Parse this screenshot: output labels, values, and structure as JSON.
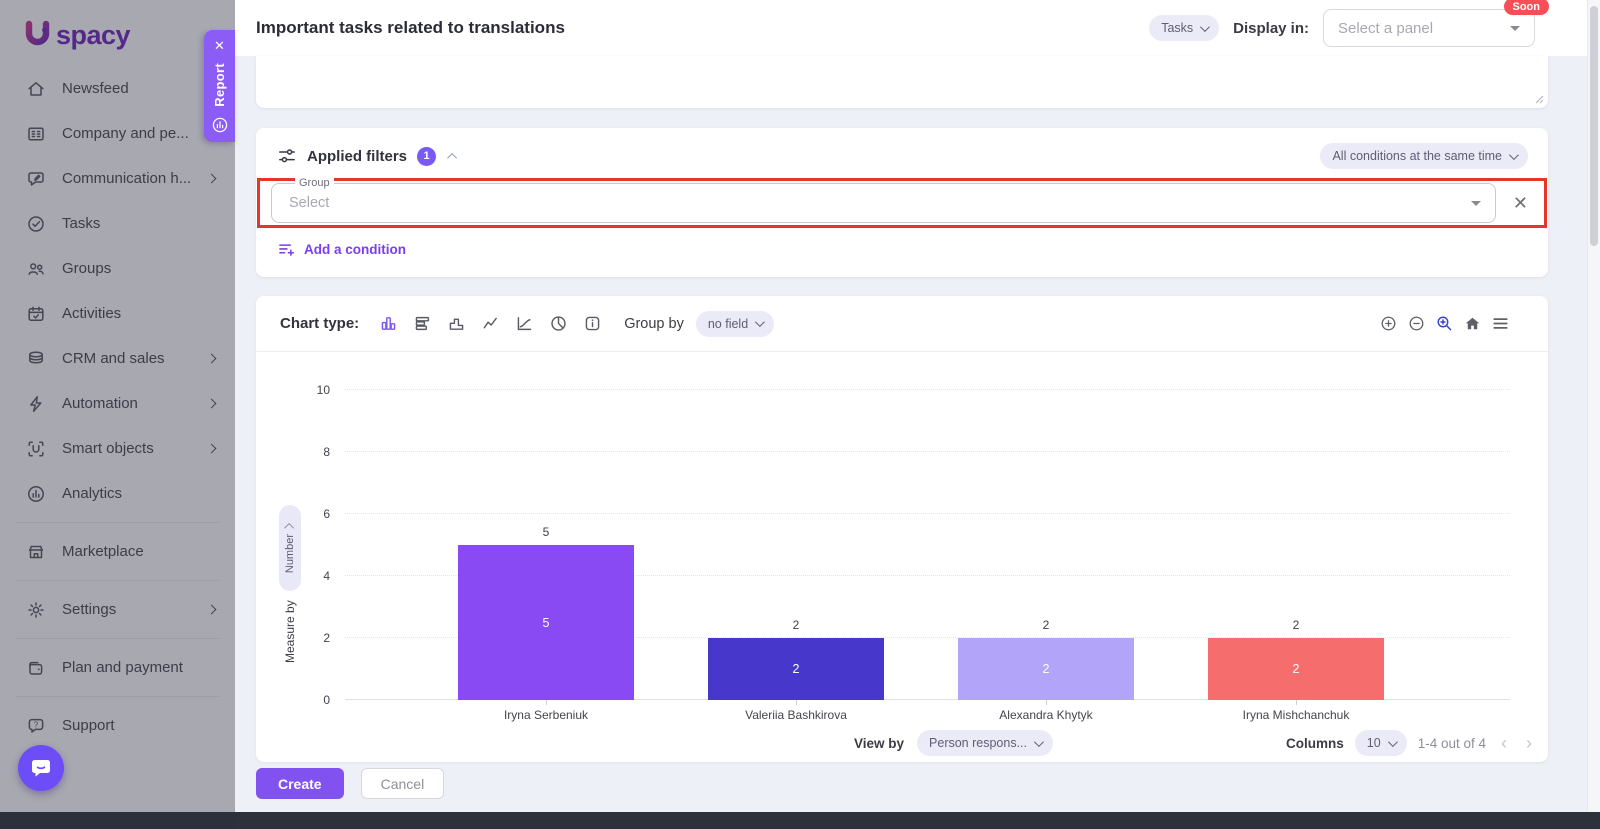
{
  "colors": {
    "accent": "#7c54f3",
    "highlight_border": "#e8352b",
    "soon_badge_bg": "#f94d57",
    "report_tab_bg": "#8b5cf6"
  },
  "sidebar": {
    "logo_text": "spacy",
    "items": [
      {
        "label": "Newsfeed",
        "icon": "home-icon",
        "chevron": false,
        "divider_after": false
      },
      {
        "label": "Company and pe...",
        "icon": "company-icon",
        "chevron": true,
        "divider_after": false
      },
      {
        "label": "Communication h...",
        "icon": "communication-icon",
        "chevron": true,
        "divider_after": false
      },
      {
        "label": "Tasks",
        "icon": "tasks-icon",
        "chevron": false,
        "divider_after": false
      },
      {
        "label": "Groups",
        "icon": "groups-icon",
        "chevron": false,
        "divider_after": false
      },
      {
        "label": "Activities",
        "icon": "activities-icon",
        "chevron": false,
        "divider_after": false
      },
      {
        "label": "CRM and sales",
        "icon": "crm-icon",
        "chevron": true,
        "divider_after": false
      },
      {
        "label": "Automation",
        "icon": "automation-icon",
        "chevron": true,
        "divider_after": false
      },
      {
        "label": "Smart objects",
        "icon": "smart-objects-icon",
        "chevron": true,
        "divider_after": false
      },
      {
        "label": "Analytics",
        "icon": "analytics-icon",
        "chevron": false,
        "divider_after": true
      },
      {
        "label": "Marketplace",
        "icon": "marketplace-icon",
        "chevron": false,
        "divider_after": true
      },
      {
        "label": "Settings",
        "icon": "settings-icon",
        "chevron": true,
        "divider_after": true
      },
      {
        "label": "Plan and payment",
        "icon": "plan-icon",
        "chevron": false,
        "divider_after": true
      },
      {
        "label": "Support",
        "icon": "support-icon",
        "chevron": false,
        "divider_after": false
      }
    ]
  },
  "report_tab": {
    "label": "Report"
  },
  "header": {
    "title": "Important tasks related to translations",
    "entity_selector": "Tasks",
    "display_in_label": "Display in:",
    "panel_select_placeholder": "Select a panel",
    "soon_badge": "Soon"
  },
  "filters": {
    "title": "Applied filters",
    "count": "1",
    "conditions_mode": "All conditions at the same time",
    "group_field_label": "Group",
    "group_field_placeholder": "Select",
    "add_condition_label": "Add a condition"
  },
  "chart_toolbar": {
    "chart_type_label": "Chart type:",
    "group_by_label": "Group by",
    "group_by_value": "no field"
  },
  "chart_data": {
    "type": "bar",
    "categories": [
      "Iryna Serbeniuk",
      "Valeriia Bashkirova",
      "Alexandra Khytyk",
      "Iryna Mishchanchuk"
    ],
    "values": [
      5,
      2,
      2,
      2
    ],
    "bar_colors": [
      "#8a4af3",
      "#4738cb",
      "#b2a4f8",
      "#f66d6d"
    ],
    "ylim": [
      0,
      10
    ],
    "yticks": [
      0,
      2,
      4,
      6,
      8,
      10
    ],
    "ylabel": "Measure by",
    "measure_pill": "Number",
    "grid": true,
    "legend": "none",
    "data_labels": "value above bar and white value inside bar"
  },
  "chart_footer": {
    "view_by_label": "View by",
    "view_by_value": "Person respons...",
    "columns_label": "Columns",
    "columns_value": "10",
    "range_text": "1-4 out of 4"
  },
  "actions": {
    "create": "Create",
    "cancel": "Cancel"
  }
}
